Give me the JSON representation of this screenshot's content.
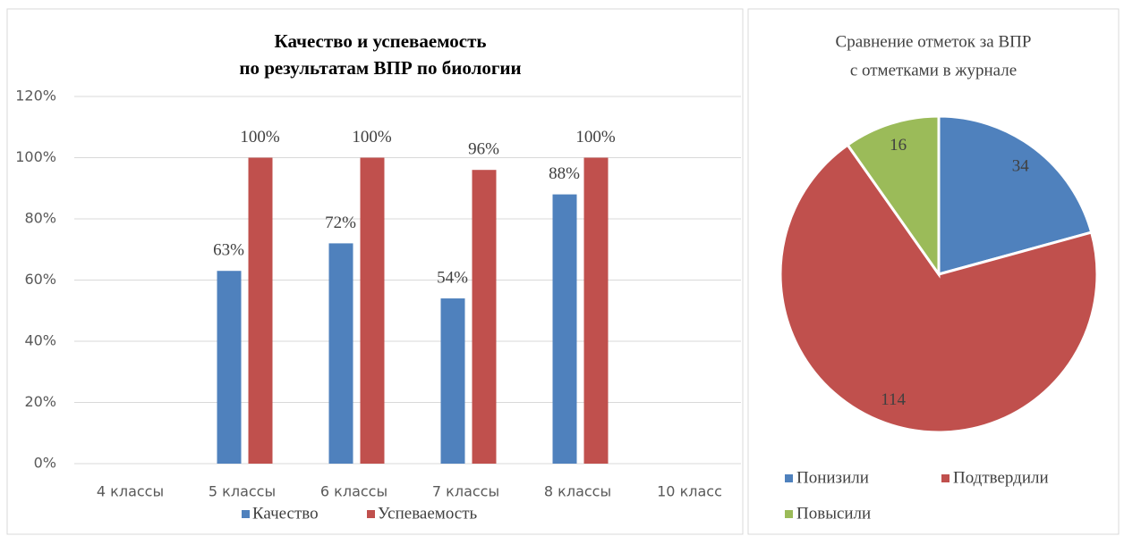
{
  "chart_data": [
    {
      "type": "bar",
      "title": [
        "Качество и успеваемость",
        "по результатам ВПР по биологии"
      ],
      "categories": [
        "4 классы",
        "5 классы",
        "6 классы",
        "7 классы",
        "8 классы",
        "10 класс"
      ],
      "series": [
        {
          "name": "Качество",
          "color": "#4f81bd",
          "values": [
            null,
            63,
            72,
            54,
            88,
            null
          ],
          "value_labels": [
            null,
            "63%",
            "72%",
            "54%",
            "88%",
            null
          ]
        },
        {
          "name": "Успеваемость",
          "color": "#c0504d",
          "values": [
            null,
            100,
            100,
            96,
            100,
            null
          ],
          "value_labels": [
            null,
            "100%",
            "100%",
            "96%",
            "100%",
            null
          ]
        }
      ],
      "ylim": [
        0,
        120
      ],
      "yticks": [
        {
          "value": 0,
          "label": "0%"
        },
        {
          "value": 20,
          "label": "20%"
        },
        {
          "value": 40,
          "label": "40%"
        },
        {
          "value": 60,
          "label": "60%"
        },
        {
          "value": 80,
          "label": "80%"
        },
        {
          "value": 100,
          "label": "100%"
        },
        {
          "value": 120,
          "label": "120%"
        }
      ],
      "grid": true,
      "legend": "bottom"
    },
    {
      "type": "pie",
      "title": [
        "Сравнение отметок за ВПР",
        "с отметками в журнале"
      ],
      "categories": [
        "Понизили",
        "Подтвердили",
        "Повысили"
      ],
      "values": [
        34,
        114,
        16
      ],
      "colors": [
        "#4f81bd",
        "#c0504d",
        "#9bbb59"
      ],
      "legend": "bottom"
    }
  ]
}
